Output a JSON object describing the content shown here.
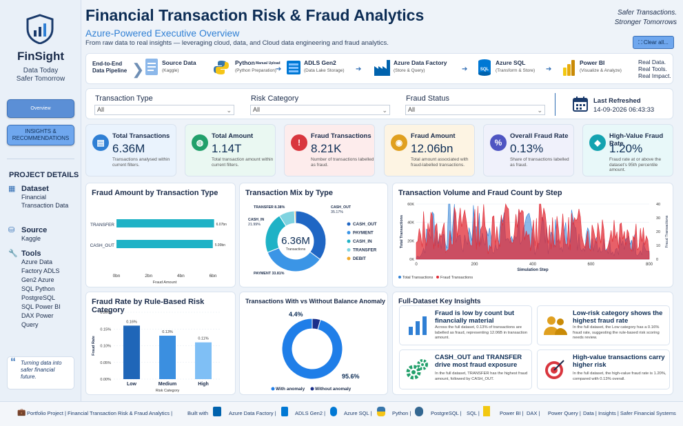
{
  "sidebar": {
    "brand": "FinSight",
    "tagline_1": "Data Today",
    "tagline_2": "Safer Tomorrow",
    "nav": [
      {
        "label": "Overview"
      },
      {
        "label": "INSIGHTS & RECOMMENDATIONS"
      }
    ],
    "project_details_title": "PROJECT DETAILS",
    "dataset_heading": "Dataset",
    "dataset_value": "Financial Transaction Data",
    "source_heading": "Source",
    "source_value": "Kaggle",
    "tools_heading": "Tools",
    "tools_value": "Azure Data Factory ADLS Gen2 Azure SQL Python PostgreSQL SQL Power BI DAX Power Query",
    "quote": "Turning data into safer financial future."
  },
  "header": {
    "title": "Financial Transaction Risk & Fraud Analytics",
    "subtitle": "Azure-Powered Executive Overview",
    "description": "From raw data to real insights — leveraging cloud, data, and Cloud data engineering and fraud analytics.",
    "slogan_1": "Safer Transactions.",
    "slogan_2": "Stronger Tomorrows",
    "clear_button": "Clear all..."
  },
  "pipeline": {
    "label_1": "End-to-End",
    "label_2": "Data Pipeline",
    "manual_upload": "Manual Upload",
    "steps": [
      {
        "name": "Source Data",
        "sub": "(Kaggle)"
      },
      {
        "name": "Python",
        "sub": "(Python Preparation)"
      },
      {
        "name": "ADLS Gen2",
        "sub": "(Data Lake Storage)"
      },
      {
        "name": "Azure Data Factory",
        "sub": "(Store & Query)"
      },
      {
        "name": "Azure SQL",
        "sub": "(Transform & Store)"
      },
      {
        "name": "Power BI",
        "sub": "(Visualize & Analyze)"
      }
    ],
    "end_1": "Real Data.",
    "end_2": "Real Tools.",
    "end_3": "Real Impact."
  },
  "filters": {
    "transaction_type": {
      "label": "Transaction Type",
      "value": "All"
    },
    "risk_category": {
      "label": "Risk Category",
      "value": "All"
    },
    "fraud_status": {
      "label": "Fraud Status",
      "value": "All"
    },
    "last_refreshed_label": "Last Refreshed",
    "last_refreshed_value": "14-09-2026 06:43:33"
  },
  "kpis": [
    {
      "title": "Total Transactions",
      "value": "6.36M",
      "note": "Transactions analysed within current filters.",
      "bg": "#eaf3fd",
      "icon_color": "#2f7fd4"
    },
    {
      "title": "Total Amount",
      "value": "1.14T",
      "note": "Total transaction amount within current filters.",
      "bg": "#eaf8f2",
      "icon_color": "#22a06b"
    },
    {
      "title": "Fraud Transactions",
      "value": "8.21K",
      "note": "Number of transactions labelled as fraud.",
      "bg": "#fdecec",
      "icon_color": "#d9363e"
    },
    {
      "title": "Fraud Amount",
      "value": "12.06bn",
      "note": "Total amount associated with fraud-labelled transactions.",
      "bg": "#fdf4e3",
      "icon_color": "#e0a020"
    },
    {
      "title": "Overall Fraud Rate",
      "value": "0.13%",
      "note": "Share of transactions labelled as fraud.",
      "bg": "#f0f1fb",
      "icon_color": "#4f55c2"
    },
    {
      "title": "High-Value Fraud Rate",
      "value": "1.20%",
      "note": "Fraud rate at or above the dataset's 95th percentile amount.",
      "bg": "#e8f8f9",
      "icon_color": "#14a3b0"
    }
  ],
  "charts": {
    "fraud_amount_title": "Fraud Amount by Transaction Type",
    "mix_title": "Transaction Mix by Type",
    "volume_title": "Transaction Volume and Fraud Count by Step",
    "rate_title": "Fraud Rate by Rule-Based Risk Category",
    "anomaly_title": "Transactions With vs Without Balance Anomaly",
    "mix_center_value": "6.36M",
    "mix_center_label": "Transactions"
  },
  "chart_data": [
    {
      "type": "bar",
      "orientation": "horizontal",
      "title": "Fraud Amount by Transaction Type",
      "categories": [
        "TRANSFER",
        "CASH_OUT"
      ],
      "values": [
        6.07,
        5.99
      ],
      "data_labels": [
        "6.07bn",
        "5.99bn"
      ],
      "unit": "bn",
      "xlabel": "Fraud Amount",
      "xlim": [
        0,
        6
      ],
      "x_ticks": [
        "0bn",
        "2bn",
        "4bn",
        "6bn"
      ],
      "color": "#1fb2c6"
    },
    {
      "type": "pie",
      "donut": true,
      "title": "Transaction Mix by Type",
      "slices": [
        {
          "name": "CASH_OUT",
          "value": 35.17,
          "label": "CASH_OUT 35.17%",
          "color": "#1f66c4"
        },
        {
          "name": "PAYMENT",
          "value": 33.81,
          "label": "PAYMENT 33.81%",
          "color": "#3b95e6"
        },
        {
          "name": "CASH_IN",
          "value": 21.99,
          "label": "CASH_IN 21.99%",
          "color": "#1fb2c6"
        },
        {
          "name": "TRANSFER",
          "value": 8.38,
          "label": "TRANSFER 8.38%",
          "color": "#7fd3e0"
        },
        {
          "name": "DEBIT",
          "value": 0.65,
          "label": "",
          "color": "#f0a92a"
        }
      ],
      "legend": [
        "CASH_OUT",
        "PAYMENT",
        "CASH_IN",
        "TRANSFER",
        "DEBIT"
      ]
    },
    {
      "type": "area",
      "title": "Transaction Volume and Fraud Count by Step",
      "xlabel": "Simulation Step",
      "ylabel": "Total Transactions",
      "y2label": "Fraud Transactions",
      "xlim": [
        0,
        800
      ],
      "x_ticks": [
        "0",
        "200",
        "400",
        "600",
        "800"
      ],
      "ylim": [
        0,
        60000
      ],
      "y_ticks": [
        "0K",
        "20K",
        "40K",
        "60K"
      ],
      "y2lim": [
        0,
        40
      ],
      "y2_ticks": [
        "0",
        "10",
        "20",
        "30",
        "40"
      ],
      "series": [
        {
          "name": "Total Transactions",
          "color": "#2f7fd4",
          "values": [
            2,
            8,
            30,
            45,
            22,
            35,
            50,
            28,
            15,
            40,
            52,
            20,
            33,
            12,
            44,
            30,
            18,
            48,
            25,
            38,
            14,
            42,
            20,
            36,
            10,
            28,
            46,
            17,
            34,
            22,
            30,
            12,
            26,
            8,
            20,
            14,
            30,
            10,
            18,
            6
          ]
        },
        {
          "name": "Fraud Transactions",
          "color": "#e02b35",
          "values": [
            10,
            22,
            34,
            18,
            28,
            12,
            30,
            20,
            36,
            15,
            26,
            33,
            14,
            29,
            22,
            38,
            16,
            27,
            31,
            12,
            24,
            35,
            18,
            26,
            30,
            14,
            28,
            22,
            33,
            16,
            25,
            30,
            12,
            27,
            20,
            34,
            15,
            24,
            18,
            8
          ]
        }
      ],
      "legend": [
        "Total Transactions",
        "Fraud Transactions"
      ]
    },
    {
      "type": "bar",
      "title": "Fraud Rate by Rule-Based Risk Category",
      "categories": [
        "Low",
        "Medium",
        "High"
      ],
      "values": [
        0.16,
        0.13,
        0.11
      ],
      "data_labels": [
        "0.16%",
        "0.13%",
        "0.11%"
      ],
      "colors": [
        "#1f66b8",
        "#3b8fe0",
        "#7fbff5"
      ],
      "xlabel": "Risk Category",
      "ylabel": "Fraud Rate",
      "ylim": [
        0,
        0.2
      ],
      "y_ticks": [
        "0.00%",
        "0.05%",
        "0.10%",
        "0.15%",
        "0.20%"
      ]
    },
    {
      "type": "pie",
      "donut": true,
      "title": "Transactions With vs Without Balance Anomaly",
      "slices": [
        {
          "name": "With anomaly",
          "value": 95.6,
          "label": "95.6%",
          "color": "#1f7ee8"
        },
        {
          "name": "Without anomaly",
          "value": 4.4,
          "label": "4.4%",
          "color": "#1a2f8a"
        }
      ],
      "legend": [
        "With anomaly",
        "Without anomaly"
      ]
    }
  ],
  "insights": {
    "title": "Full-Dataset Key Insights",
    "items": [
      {
        "heading": "Fraud is low by count but financially material",
        "body": "Across the full dataset, 0.13% of transactions are labelled as fraud, representing 12.06B in transaction amount."
      },
      {
        "heading": "Low-risk category shows the highest fraud rate",
        "body": "In the full dataset, the Low category has a 0.16% fraud rate, suggesting the rule-based risk scoring needs review."
      },
      {
        "heading": "CASH_OUT and TRANSFER drive most fraud exposure",
        "body": "In the full dataset, TRANSFER has the highest fraud amount, followed by CASH_OUT."
      },
      {
        "heading": "High-value transactions carry higher risk",
        "body": "In the full dataset, the high-value fraud rate is 1.20%, compared with 0.13% overall."
      }
    ]
  },
  "footer": {
    "portfolio": "Portfolio Project | Financial Transaction Risk & Fraud Analytics |",
    "built_with": "Built with",
    "items": [
      "Azure Data Factory |",
      "ADLS Gen2 |",
      "Azure SQL |",
      "Python |",
      "PostgreSQL |",
      "SQL |",
      "Power BI |",
      "DAX |",
      "Power Query |",
      "Data | Insights | Safer Financial Systems"
    ]
  }
}
